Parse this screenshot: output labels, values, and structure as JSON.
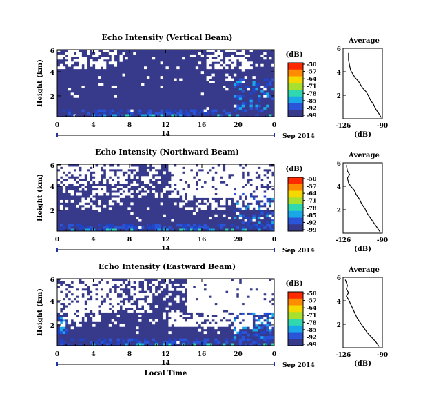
{
  "chart_data": [
    {
      "type": "heatmap",
      "title": "Echo Intensity (Vertical Beam)",
      "ylabel": "Height (km)",
      "ylim": [
        0,
        5
      ],
      "yticks": [
        "2",
        "4",
        "6"
      ],
      "xlim": [
        0,
        24
      ],
      "xticks": [
        "0",
        "4",
        "8",
        "12",
        "16",
        "20",
        "0"
      ],
      "date_center": "14",
      "date_label": "Sep 2014",
      "colorbar": {
        "unit": "(dB)",
        "labels": [
          "-50",
          "-57",
          "-64",
          "-71",
          "-78",
          "-85",
          "-92",
          "-99"
        ],
        "colors": [
          "#ff2a00",
          "#ff8c00",
          "#f5d800",
          "#a8e030",
          "#30d8b0",
          "#1aa8e8",
          "#2a55d8",
          "#373a8a"
        ]
      },
      "background_value_dB": -99,
      "no_data_color": "#ffffff",
      "profile": {
        "title": "Average",
        "xlabel": "(dB)",
        "xticks": [
          "-126",
          "-90"
        ],
        "yticks": [
          "2",
          "4",
          "6"
        ],
        "xlim": [
          -126,
          -90
        ],
        "ylim": [
          0,
          6
        ],
        "points": [
          [
            -91,
            0.1
          ],
          [
            -93,
            0.4
          ],
          [
            -96,
            0.8
          ],
          [
            -98,
            1.2
          ],
          [
            -101,
            1.6
          ],
          [
            -103,
            2.0
          ],
          [
            -105,
            2.3
          ],
          [
            -108,
            2.6
          ],
          [
            -110,
            2.9
          ],
          [
            -112,
            3.2
          ],
          [
            -115,
            3.5
          ],
          [
            -117,
            3.8
          ],
          [
            -119,
            4.1
          ],
          [
            -120,
            4.5
          ],
          [
            -121,
            5.0
          ],
          [
            -121,
            5.6
          ]
        ]
      }
    },
    {
      "type": "heatmap",
      "title": "Echo Intensity (Northward Beam)",
      "ylabel": "Height (km)",
      "ylim": [
        0,
        5
      ],
      "yticks": [
        "2",
        "4",
        "6"
      ],
      "xlim": [
        0,
        24
      ],
      "xticks": [
        "0",
        "4",
        "8",
        "12",
        "16",
        "20",
        "0"
      ],
      "date_center": "14",
      "date_label": "Sep 2014",
      "colorbar": {
        "unit": "(dB)",
        "labels": [
          "-50",
          "-57",
          "-64",
          "-71",
          "-78",
          "-85",
          "-92",
          "-99"
        ],
        "colors": [
          "#ff2a00",
          "#ff8c00",
          "#f5d800",
          "#a8e030",
          "#30d8b0",
          "#1aa8e8",
          "#2a55d8",
          "#373a8a"
        ]
      },
      "background_value_dB": -99,
      "no_data_color": "#ffffff",
      "profile": {
        "title": "Average",
        "xlabel": "(dB)",
        "xticks": [
          "-126",
          "-90"
        ],
        "yticks": [
          "2",
          "4",
          "6"
        ],
        "xlim": [
          -126,
          -90
        ],
        "ylim": [
          0,
          6
        ],
        "points": [
          [
            -92,
            0.1
          ],
          [
            -95,
            0.5
          ],
          [
            -98,
            0.9
          ],
          [
            -101,
            1.3
          ],
          [
            -104,
            1.7
          ],
          [
            -106,
            2.1
          ],
          [
            -109,
            2.5
          ],
          [
            -111,
            2.9
          ],
          [
            -114,
            3.3
          ],
          [
            -116,
            3.7
          ],
          [
            -119,
            4.0
          ],
          [
            -121,
            4.3
          ],
          [
            -122,
            4.7
          ],
          [
            -120,
            5.0
          ],
          [
            -122,
            5.3
          ],
          [
            -123,
            5.8
          ]
        ]
      }
    },
    {
      "type": "heatmap",
      "title": "Echo Intensity (Eastward Beam)",
      "ylabel": "Height (km)",
      "xlabel": "Local Time",
      "ylim": [
        0,
        5
      ],
      "yticks": [
        "2",
        "4",
        "6"
      ],
      "xlim": [
        0,
        24
      ],
      "xticks": [
        "0",
        "4",
        "8",
        "12",
        "16",
        "20",
        "0"
      ],
      "date_center": "14",
      "date_label": "Sep 2014",
      "colorbar": {
        "unit": "(dB)",
        "labels": [
          "-50",
          "-57",
          "-64",
          "-71",
          "-78",
          "-85",
          "-92",
          "-99"
        ],
        "colors": [
          "#ff2a00",
          "#ff8c00",
          "#f5d800",
          "#a8e030",
          "#30d8b0",
          "#1aa8e8",
          "#2a55d8",
          "#373a8a"
        ]
      },
      "background_value_dB": -99,
      "no_data_color": "#ffffff",
      "profile": {
        "title": "Average",
        "xlabel": "(dB)",
        "xticks": [
          "-126",
          "-90"
        ],
        "yticks": [
          "2",
          "4",
          "6"
        ],
        "xlim": [
          -126,
          -90
        ],
        "ylim": [
          0,
          6
        ],
        "points": [
          [
            -93,
            0.1
          ],
          [
            -96,
            0.5
          ],
          [
            -100,
            0.9
          ],
          [
            -104,
            1.3
          ],
          [
            -107,
            1.7
          ],
          [
            -110,
            2.1
          ],
          [
            -113,
            2.5
          ],
          [
            -115,
            2.9
          ],
          [
            -117,
            3.3
          ],
          [
            -119,
            3.7
          ],
          [
            -121,
            4.1
          ],
          [
            -123,
            4.4
          ],
          [
            -121,
            4.7
          ],
          [
            -123,
            5.0
          ],
          [
            -122,
            5.3
          ],
          [
            -124,
            5.8
          ]
        ]
      }
    }
  ]
}
